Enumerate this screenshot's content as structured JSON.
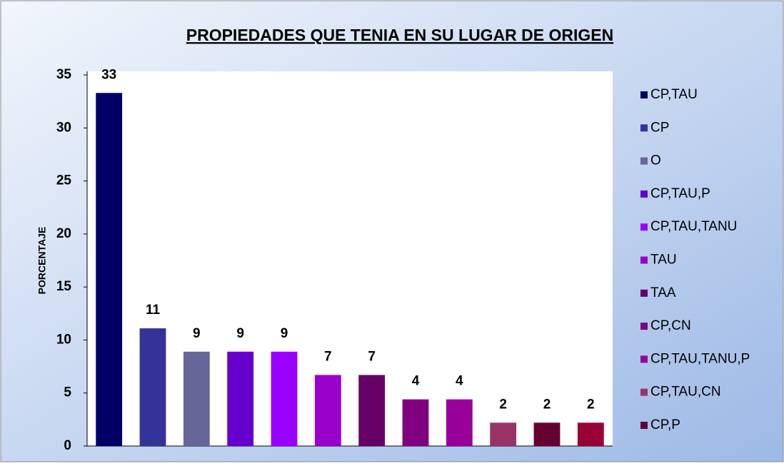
{
  "chart_data": {
    "type": "bar",
    "title": "PROPIEDADES QUE TENIA EN SU LUGAR DE ORIGEN",
    "y_label": "PORCENTAJE",
    "categories": [
      "CP,TAU",
      "CP",
      "O",
      "CP,TAU,P",
      "CP,TAU,TANU",
      "TAU",
      "TAA",
      "CP,CN",
      "CP,TAU,TANU,P",
      "CP,TAU,CN",
      "CP,P",
      null
    ],
    "values": [
      33.3,
      11.1,
      8.9,
      8.9,
      8.9,
      6.7,
      6.7,
      4.4,
      4.4,
      2.2,
      2.2,
      2.2
    ],
    "value_labels": [
      "33",
      "11",
      "9",
      "9",
      "9",
      "7",
      "7",
      "4",
      "4",
      "2",
      "2",
      "2"
    ],
    "colors": [
      "#000066",
      "#333399",
      "#666699",
      "#6600cc",
      "#9900ff",
      "#9900cc",
      "#660066",
      "#800080",
      "#990099",
      "#993366",
      "#660033",
      "#990033"
    ],
    "ylim": [
      0,
      35
    ],
    "yticks": [
      0,
      5,
      10,
      15,
      20,
      25,
      30,
      35
    ],
    "legend": "right"
  }
}
